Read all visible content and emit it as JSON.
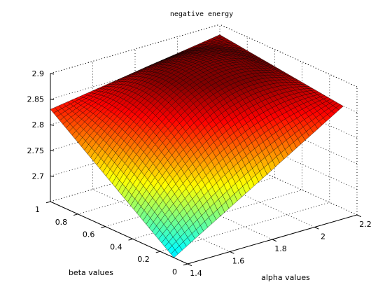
{
  "chart_data": {
    "type": "surface",
    "title": "negative energy",
    "xlabel": "alpha values",
    "ylabel": "beta values",
    "zlabel": "",
    "xlim": [
      1.4,
      2.2
    ],
    "ylim": [
      0,
      1
    ],
    "zlim": [
      2.65,
      2.9
    ],
    "xticks": [
      "1.4",
      "1.6",
      "1.8",
      "2",
      "2.2"
    ],
    "yticks": [
      "0",
      "0.2",
      "0.4",
      "0.6",
      "0.8",
      "1"
    ],
    "zticks": [
      "2.7",
      "2.75",
      "2.8",
      "2.85",
      "2.9"
    ],
    "grid": true,
    "colormap": "jet",
    "surface_domain": {
      "alpha": [
        1.4,
        2.2
      ],
      "beta": [
        0.1,
        1.0
      ]
    },
    "surface_samples": [
      {
        "alpha": 1.4,
        "beta": 0.1,
        "z": 2.65
      },
      {
        "alpha": 1.4,
        "beta": 1.0,
        "z": 2.83
      },
      {
        "alpha": 2.2,
        "beta": 1.0,
        "z": 2.88
      },
      {
        "alpha": 2.2,
        "beta": 0.1,
        "z": 2.85
      },
      {
        "alpha": 1.8,
        "beta": 0.55,
        "z": 2.885
      }
    ]
  }
}
